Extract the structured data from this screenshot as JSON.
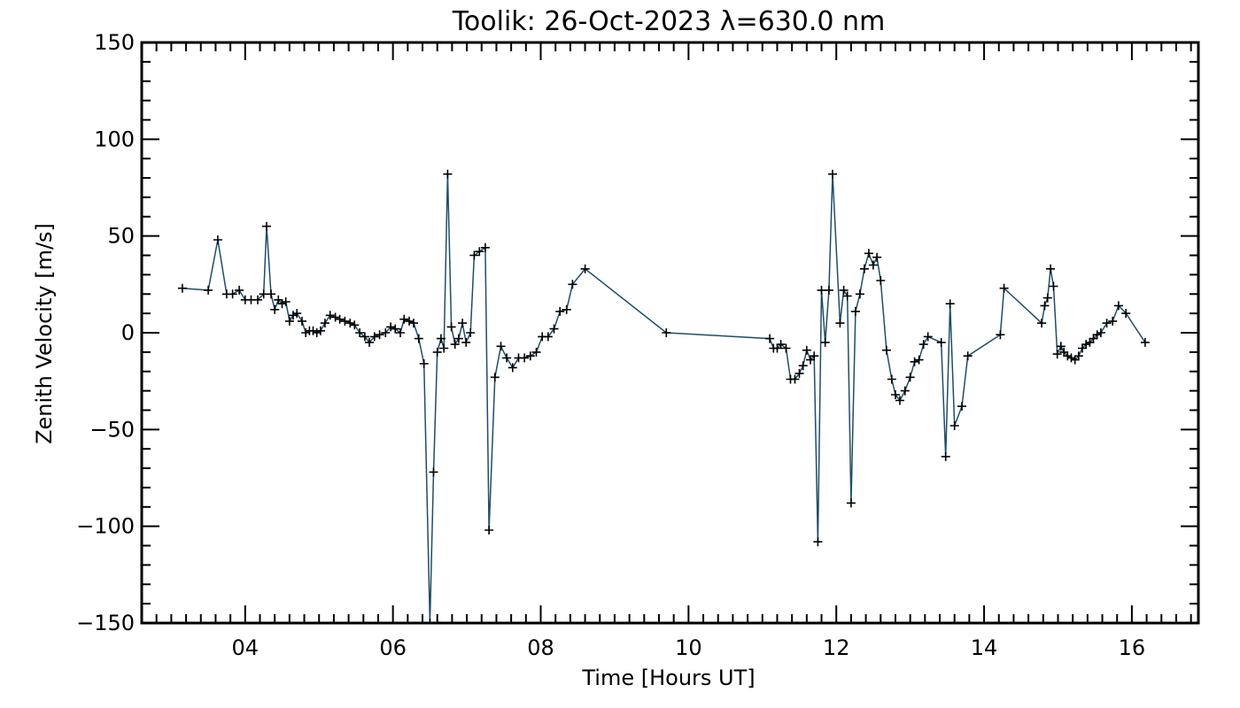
{
  "chart_data": {
    "type": "line",
    "title": "Toolik: 26-Oct-2023 λ=630.0 nm",
    "xlabel": "Time [Hours UT]",
    "ylabel": "Zenith Velocity [m/s]",
    "xlim": [
      2.6,
      16.9
    ],
    "ylim": [
      -150,
      150
    ],
    "xticks": [
      {
        "value": 4,
        "label": "04"
      },
      {
        "value": 6,
        "label": "06"
      },
      {
        "value": 8,
        "label": "08"
      },
      {
        "value": 10,
        "label": "10"
      },
      {
        "value": 12,
        "label": "12"
      },
      {
        "value": 14,
        "label": "14"
      },
      {
        "value": 16,
        "label": "16"
      }
    ],
    "yticks": [
      {
        "value": 150,
        "label": "150"
      },
      {
        "value": 100,
        "label": "100"
      },
      {
        "value": 50,
        "label": "50"
      },
      {
        "value": 0,
        "label": "0"
      },
      {
        "value": -50,
        "label": "−50"
      },
      {
        "value": -100,
        "label": "−100"
      },
      {
        "value": -150,
        "label": "−150"
      }
    ],
    "grid": false,
    "line_color": "#1f4e66",
    "marker": "plus",
    "marker_color": "#000000",
    "series": [
      {
        "x": [
          3.15,
          3.5,
          3.63,
          3.75,
          3.83,
          3.92,
          4.0,
          4.08,
          4.17,
          4.25,
          4.29,
          4.35,
          4.4,
          4.45,
          4.5,
          4.55,
          4.6,
          4.65,
          4.7,
          4.77,
          4.82,
          4.87,
          4.92,
          4.97,
          5.02,
          5.08,
          5.15,
          5.22,
          5.28,
          5.35,
          5.42,
          5.48,
          5.55,
          5.62,
          5.68,
          5.75,
          5.82,
          5.9,
          5.97,
          6.03,
          6.1,
          6.15,
          6.22,
          6.28,
          6.35,
          6.42,
          6.5,
          6.55,
          6.6,
          6.65,
          6.69,
          6.74,
          6.79,
          6.84,
          6.89,
          6.94,
          6.99,
          7.05,
          7.1,
          7.17,
          7.25,
          7.3,
          7.38,
          7.46,
          7.54,
          7.62,
          7.7,
          7.78,
          7.86,
          7.94,
          8.02,
          8.1,
          8.18,
          8.26,
          8.35,
          8.43,
          8.6,
          9.7,
          11.1,
          11.15,
          11.2,
          11.25,
          11.32,
          11.38,
          11.44,
          11.5,
          11.55,
          11.6,
          11.65,
          11.7,
          11.75,
          11.8,
          11.85,
          11.9,
          11.95,
          12.05,
          12.1,
          12.15,
          12.2,
          12.26,
          12.32,
          12.38,
          12.44,
          12.5,
          12.55,
          12.6,
          12.68,
          12.75,
          12.8,
          12.86,
          12.93,
          13.0,
          13.06,
          13.12,
          13.18,
          13.24,
          13.42,
          13.48,
          13.54,
          13.6,
          13.7,
          13.78,
          14.22,
          14.27,
          14.78,
          14.82,
          14.86,
          14.9,
          14.94,
          14.99,
          15.04,
          15.08,
          15.13,
          15.18,
          15.23,
          15.28,
          15.33,
          15.38,
          15.43,
          15.48,
          15.53,
          15.58,
          15.66,
          15.74,
          15.82,
          15.92,
          16.18
        ],
        "y": [
          23,
          22,
          48,
          20,
          20,
          22,
          17,
          17,
          17,
          20,
          55,
          20,
          12,
          17,
          15,
          16,
          6,
          9,
          10,
          6,
          0,
          1,
          1,
          0,
          1,
          5,
          9,
          8,
          7,
          6,
          5,
          4,
          0,
          -2,
          -5,
          -2,
          -1,
          0,
          3,
          2,
          0,
          7,
          6,
          5,
          -3,
          -16,
          -150,
          -72,
          -10,
          -3,
          -8,
          82,
          3,
          -6,
          -3,
          5,
          -5,
          0,
          40,
          42,
          44,
          -102,
          -23,
          -7,
          -13,
          -18,
          -13,
          -13,
          -12,
          -10,
          -2,
          -2,
          2,
          11,
          12,
          25,
          33,
          0,
          -3,
          -8,
          -8,
          -6,
          -8,
          -24,
          -24,
          -21,
          -17,
          -9,
          -14,
          -12,
          -108,
          22,
          -5,
          22,
          82,
          5,
          22,
          19,
          -88,
          11,
          20,
          33,
          41,
          35,
          39,
          27,
          -9,
          -24,
          -32,
          -35,
          -30,
          -23,
          -15,
          -14,
          -6,
          -2,
          -5,
          -64,
          15,
          -48,
          -38,
          -12,
          -1,
          23,
          5,
          14,
          18,
          33,
          24,
          -11,
          -7,
          -10,
          -12,
          -13,
          -14,
          -12,
          -8,
          -6,
          -5,
          -3,
          -1,
          0,
          5,
          6,
          14,
          10,
          -5
        ]
      }
    ]
  }
}
